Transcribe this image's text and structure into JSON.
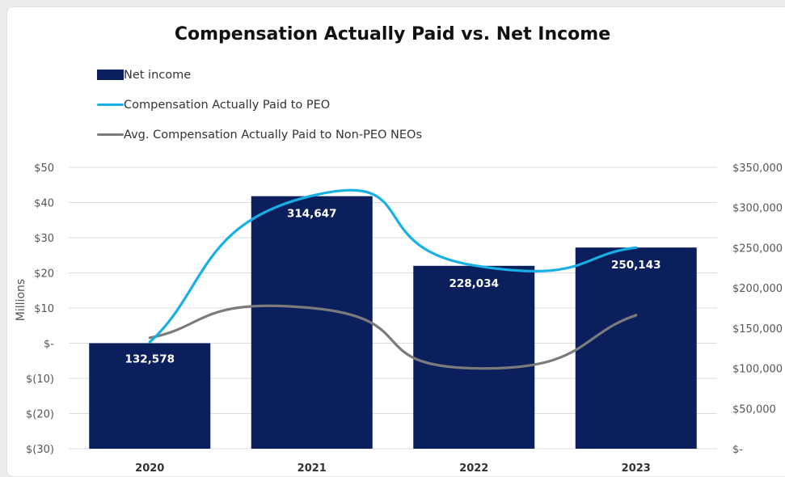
{
  "chart_data": {
    "type": "bar",
    "title": "Compensation Actually Paid vs. Net Income",
    "ylabel": "Millions",
    "categories": [
      "2020",
      "2021",
      "2022",
      "2023"
    ],
    "y_left": {
      "range": [
        -30,
        50
      ],
      "ticks": [
        50,
        40,
        30,
        20,
        10,
        0,
        -10,
        -20,
        -30
      ],
      "tick_labels": [
        "$50",
        "$40",
        "$30",
        "$20",
        "$10",
        "$-",
        "$(10)",
        "$(20)",
        "$(30)"
      ]
    },
    "y_right": {
      "range": [
        0,
        350000
      ],
      "ticks": [
        350000,
        300000,
        250000,
        200000,
        150000,
        100000,
        50000,
        0
      ],
      "tick_labels": [
        "$350,000",
        "$300,000",
        "$250,000",
        "$200,000",
        "$150,000",
        "$100,000",
        "$50,000",
        "$-"
      ]
    },
    "series": [
      {
        "name": "Net income",
        "kind": "bar",
        "axis": "left",
        "color": "#0b1f5c",
        "values": [
          0,
          41.8,
          22,
          27.2
        ],
        "data_labels": [
          "132,578",
          "314,647",
          "228,034",
          "250,143"
        ]
      },
      {
        "name": "Compensation Actually Paid to PEO",
        "kind": "line",
        "axis": "right",
        "color": "#17b0e6",
        "values": [
          132578,
          314647,
          228034,
          250143
        ]
      },
      {
        "name": "Avg. Compensation Actually Paid to Non-PEO NEOs",
        "kind": "line",
        "axis": "right",
        "color": "#7b7b7b",
        "values": [
          138000,
          175000,
          100000,
          166000
        ]
      }
    ],
    "grid": true,
    "legend_position": "top-left"
  }
}
